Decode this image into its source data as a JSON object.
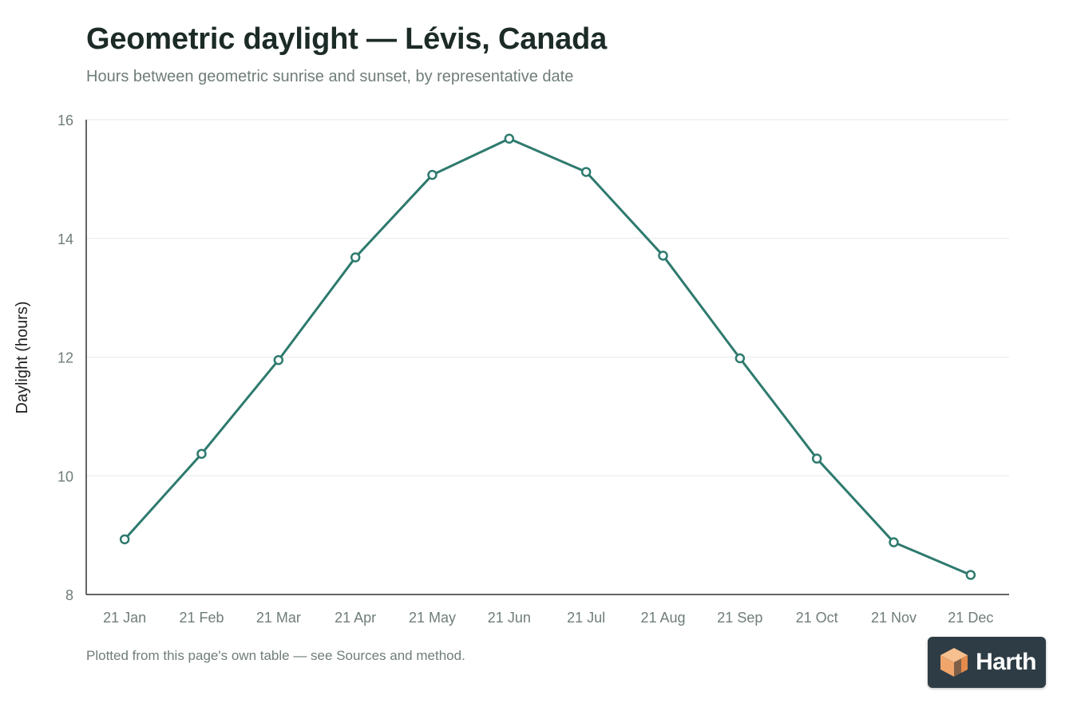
{
  "title": "Geometric daylight — Lévis, Canada",
  "subtitle": "Hours between geometric sunrise and sunset, by representative date",
  "footnote": "Plotted from this page's own table — see Sources and method.",
  "logo_text": "Harth",
  "colors": {
    "line": "#2e7a6e",
    "axis": "#333333",
    "grid": "#e6e9e8",
    "tick_text": "#6f7d7a",
    "logo_bg": "#2e3c45",
    "logo_cube": "#f0a56a"
  },
  "chart_data": {
    "type": "line",
    "title": "Geometric daylight — Lévis, Canada",
    "subtitle": "Hours between geometric sunrise and sunset, by representative date",
    "xlabel": "",
    "ylabel": "Daylight (hours)",
    "ylim": [
      8,
      16
    ],
    "yticks": [
      8,
      10,
      12,
      14,
      16
    ],
    "grid": true,
    "categories": [
      "21 Jan",
      "21 Feb",
      "21 Mar",
      "21 Apr",
      "21 May",
      "21 Jun",
      "21 Jul",
      "21 Aug",
      "21 Sep",
      "21 Oct",
      "21 Nov",
      "21 Dec"
    ],
    "series": [
      {
        "values": [
          8.93,
          10.37,
          11.95,
          13.68,
          15.07,
          15.68,
          15.12,
          13.71,
          11.98,
          10.29,
          8.88,
          8.33
        ]
      }
    ]
  }
}
